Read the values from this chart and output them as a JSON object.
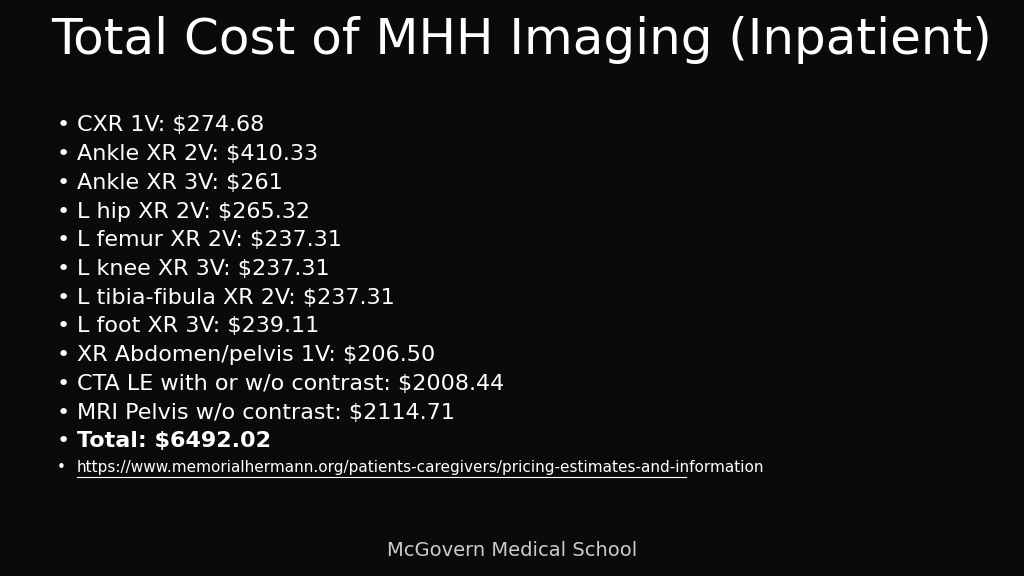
{
  "title": "Total Cost of MHH Imaging (Inpatient)",
  "background_color": "#0a0a0a",
  "footer_bg_color": "#2a2a2a",
  "title_color": "#ffffff",
  "text_color": "#ffffff",
  "footer_text_color": "#cccccc",
  "footer_text": "McGovern Medical School",
  "bullet_items": [
    "CXR 1V: $274.68",
    "Ankle XR 2V: $410.33",
    "Ankle XR 3V: $261",
    "L hip XR 2V: $265.32",
    "L femur XR 2V: $237.31",
    "L knee XR 3V: $237.31",
    "L tibia-fibula XR 2V: $237.31",
    "L foot XR 3V: $239.11",
    "XR Abdomen/pelvis 1V: $206.50",
    "CTA LE with or w/o contrast: $2008.44",
    "MRI Pelvis w/o contrast: $2114.71",
    "Total: $6492.02"
  ],
  "bold_item_index": 11,
  "url_text": "https://www.memorialhermann.org/patients-caregivers/pricing-estimates-and-information",
  "title_fontsize": 36,
  "bullet_fontsize": 16,
  "footer_fontsize": 14,
  "url_fontsize": 11
}
